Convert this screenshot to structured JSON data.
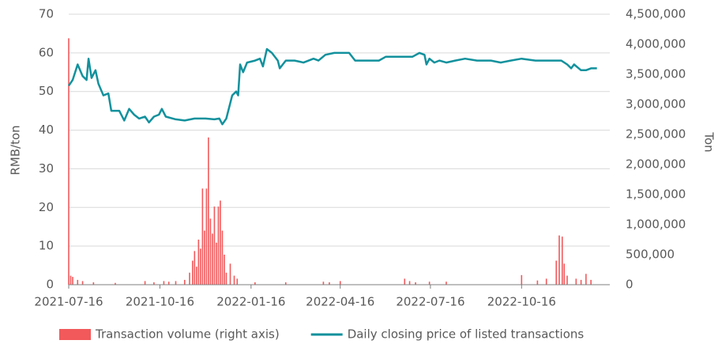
{
  "chart_data": {
    "type": "combo",
    "y_label": "RMB/ton",
    "y2_label": "Ton",
    "xlim": [
      "2021-07-16",
      "2023-01-13"
    ],
    "xticks": [
      "2021-07-16",
      "2021-10-16",
      "2022-01-16",
      "2022-04-16",
      "2022-07-16",
      "2022-10-16"
    ],
    "ylim": [
      0,
      70
    ],
    "yticks": [
      0,
      10,
      20,
      30,
      40,
      50,
      60,
      70
    ],
    "y2lim": [
      0,
      4500000
    ],
    "y2ticks": [
      0,
      {
        "value": 500000,
        "label": "500,000"
      },
      {
        "value": 1000000,
        "label": "1,000,000"
      },
      {
        "value": 1500000,
        "label": "1,500,000"
      },
      {
        "value": 2000000,
        "label": "2,000,000"
      },
      {
        "value": 2500000,
        "label": "2,500,000"
      },
      {
        "value": 3000000,
        "label": "3,000,000"
      },
      {
        "value": 3500000,
        "label": "3,500,000"
      },
      {
        "value": 4000000,
        "label": "4,000,000"
      },
      {
        "value": 4500000,
        "label": "4,500,000"
      }
    ],
    "grid": true,
    "legend": "bottom",
    "series": [
      {
        "name": "Transaction volume (right axis)",
        "type": "bar",
        "axis": "y2",
        "color": "#f2595b",
        "x": [
          "2021-07-16",
          "2021-07-18",
          "2021-07-20",
          "2021-07-25",
          "2021-07-30",
          "2021-08-10",
          "2021-09-01",
          "2021-10-01",
          "2021-10-10",
          "2021-10-20",
          "2021-10-25",
          "2021-11-01",
          "2021-11-10",
          "2021-11-15",
          "2021-11-18",
          "2021-11-20",
          "2021-11-22",
          "2021-11-24",
          "2021-11-26",
          "2021-11-28",
          "2021-11-30",
          "2021-12-02",
          "2021-12-04",
          "2021-12-06",
          "2021-12-08",
          "2021-12-10",
          "2021-12-12",
          "2021-12-14",
          "2021-12-16",
          "2021-12-18",
          "2021-12-20",
          "2021-12-22",
          "2021-12-26",
          "2021-12-30",
          "2022-01-02",
          "2022-01-20",
          "2022-02-20",
          "2022-03-30",
          "2022-04-05",
          "2022-04-16",
          "2022-06-20",
          "2022-06-25",
          "2022-07-01",
          "2022-07-15",
          "2022-08-01",
          "2022-10-16",
          "2022-11-01",
          "2022-11-10",
          "2022-11-20",
          "2022-11-23",
          "2022-11-26",
          "2022-11-28",
          "2022-12-01",
          "2022-12-10",
          "2022-12-15",
          "2022-12-20",
          "2022-12-25"
        ],
        "values": [
          4100000,
          150000,
          130000,
          80000,
          60000,
          40000,
          30000,
          60000,
          40000,
          60000,
          50000,
          60000,
          80000,
          200000,
          400000,
          560000,
          300000,
          750000,
          600000,
          1600000,
          900000,
          1600000,
          2450000,
          1100000,
          850000,
          1300000,
          700000,
          1300000,
          1400000,
          900000,
          500000,
          200000,
          350000,
          150000,
          100000,
          40000,
          40000,
          50000,
          40000,
          60000,
          100000,
          60000,
          40000,
          50000,
          50000,
          160000,
          70000,
          100000,
          400000,
          820000,
          800000,
          350000,
          150000,
          100000,
          80000,
          180000,
          80000
        ]
      },
      {
        "name": "Daily closing price of listed transactions",
        "type": "line",
        "axis": "y",
        "color": "#12919d",
        "x": [
          "2021-07-16",
          "2021-07-20",
          "2021-07-25",
          "2021-07-30",
          "2021-08-03",
          "2021-08-05",
          "2021-08-08",
          "2021-08-12",
          "2021-08-15",
          "2021-08-20",
          "2021-08-25",
          "2021-08-28",
          "2021-09-05",
          "2021-09-10",
          "2021-09-15",
          "2021-09-20",
          "2021-09-25",
          "2021-10-01",
          "2021-10-05",
          "2021-10-10",
          "2021-10-15",
          "2021-10-18",
          "2021-10-22",
          "2021-11-01",
          "2021-11-10",
          "2021-11-20",
          "2021-12-01",
          "2021-12-10",
          "2021-12-15",
          "2021-12-18",
          "2021-12-22",
          "2021-12-28",
          "2022-01-01",
          "2022-01-03",
          "2022-01-05",
          "2022-01-08",
          "2022-01-12",
          "2022-01-20",
          "2022-01-25",
          "2022-01-28",
          "2022-02-01",
          "2022-02-06",
          "2022-02-12",
          "2022-02-14",
          "2022-02-20",
          "2022-03-01",
          "2022-03-10",
          "2022-03-20",
          "2022-03-25",
          "2022-04-01",
          "2022-04-10",
          "2022-04-16",
          "2022-04-25",
          "2022-05-01",
          "2022-05-15",
          "2022-05-25",
          "2022-06-01",
          "2022-06-15",
          "2022-06-28",
          "2022-07-05",
          "2022-07-10",
          "2022-07-12",
          "2022-07-15",
          "2022-07-20",
          "2022-07-25",
          "2022-08-01",
          "2022-08-10",
          "2022-08-20",
          "2022-09-01",
          "2022-09-15",
          "2022-09-25",
          "2022-10-05",
          "2022-10-16",
          "2022-10-30",
          "2022-11-15",
          "2022-11-25",
          "2022-12-01",
          "2022-12-05",
          "2022-12-08",
          "2022-12-15",
          "2022-12-20",
          "2022-12-25",
          "2022-12-31"
        ],
        "values": [
          51.5,
          53,
          57,
          54,
          53,
          58.5,
          53.5,
          55.5,
          52,
          49,
          49.5,
          45,
          45,
          42.5,
          45.5,
          44,
          43,
          43.5,
          42,
          43.5,
          44,
          45.5,
          43.5,
          42.8,
          42.5,
          43,
          43,
          42.8,
          43,
          41.5,
          43,
          49,
          50,
          49,
          57,
          55,
          57.5,
          58,
          58.5,
          56.5,
          61,
          60,
          58,
          56,
          58,
          58,
          57.5,
          58.5,
          58,
          59.5,
          60,
          60,
          60,
          58,
          58,
          58,
          59,
          59,
          59,
          60,
          59.5,
          57,
          58.5,
          57.5,
          58,
          57.5,
          58,
          58.5,
          58,
          58,
          57.5,
          58,
          58.5,
          58,
          58,
          58,
          57,
          56,
          57,
          55.5,
          55.5,
          56,
          56
        ]
      }
    ]
  }
}
